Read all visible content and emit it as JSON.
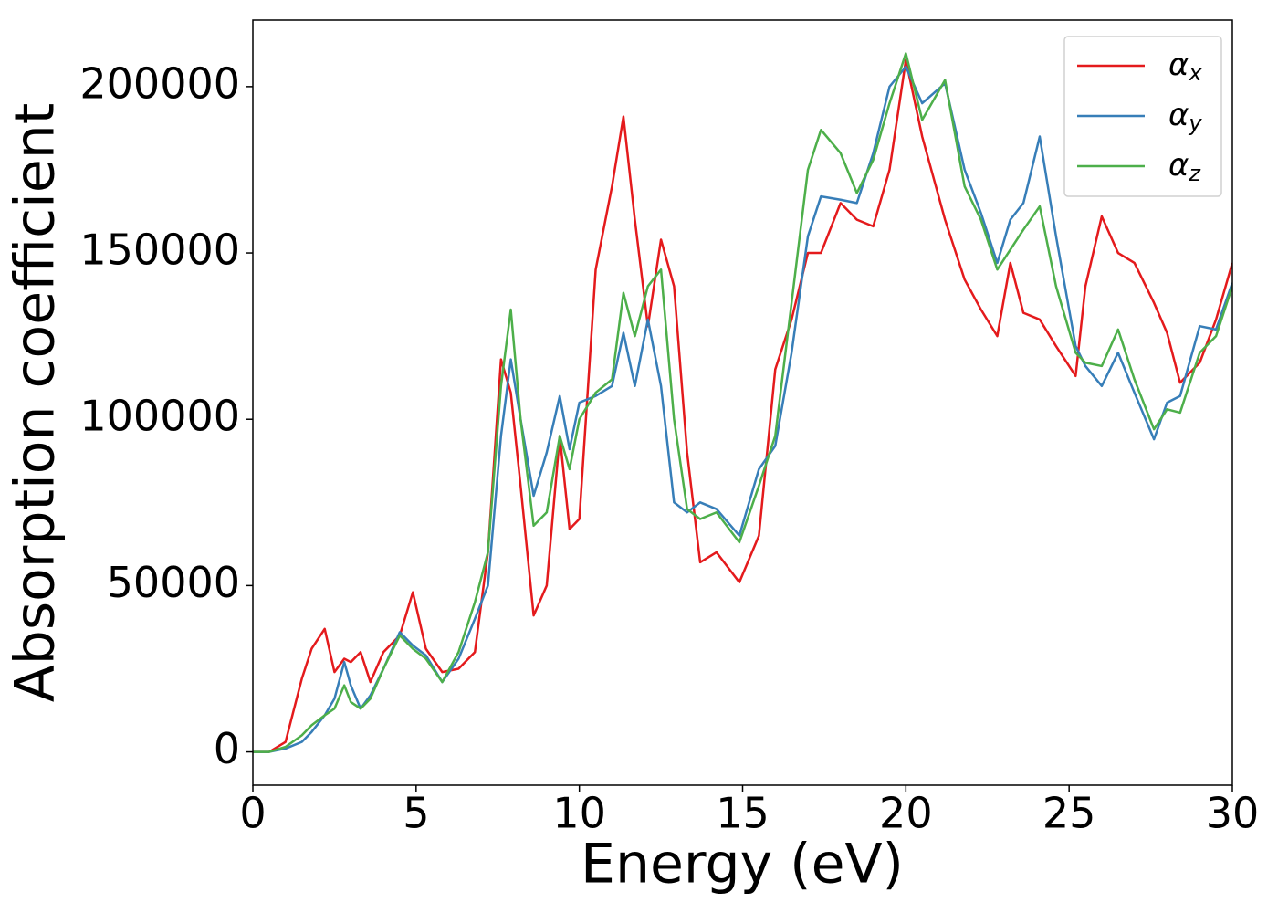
{
  "chart_data": {
    "type": "line",
    "xlabel": "Energy (eV)",
    "ylabel": "Absorption coefficient",
    "x": [
      0,
      0.5,
      1,
      1.5,
      1.8,
      2.2,
      2.5,
      2.8,
      3.0,
      3.3,
      3.6,
      4.0,
      4.5,
      4.9,
      5.3,
      5.8,
      6.3,
      6.8,
      7.2,
      7.6,
      7.9,
      8.2,
      8.6,
      9.0,
      9.4,
      9.7,
      10,
      10.5,
      11,
      11.35,
      11.7,
      12.1,
      12.5,
      12.9,
      13.3,
      13.7,
      14.2,
      14.9,
      15.5,
      16,
      16.5,
      17,
      17.4,
      18,
      18.5,
      19,
      19.5,
      20,
      20.5,
      21.2,
      21.8,
      22.3,
      22.8,
      23.2,
      23.6,
      24.1,
      24.6,
      25.2,
      25.5,
      26,
      26.5,
      27,
      27.6,
      28,
      28.4,
      29,
      29.5,
      30
    ],
    "series": [
      {
        "name": "αx",
        "color": "#e41a1c",
        "values": [
          0,
          0,
          3000,
          22000,
          31000,
          37000,
          24000,
          28000,
          27000,
          30000,
          21000,
          30000,
          35000,
          48000,
          31000,
          24000,
          25000,
          30000,
          60000,
          118000,
          108000,
          80000,
          41000,
          50000,
          95000,
          67000,
          70000,
          145000,
          170000,
          191000,
          160000,
          128000,
          154000,
          140000,
          90000,
          57000,
          60000,
          51000,
          65000,
          115000,
          130000,
          150000,
          150000,
          165000,
          160000,
          158000,
          175000,
          208000,
          185000,
          160000,
          142000,
          133000,
          125000,
          147000,
          132000,
          130000,
          122000,
          113000,
          140000,
          161000,
          150000,
          147000,
          135000,
          126000,
          111000,
          117000,
          130000,
          147000
        ]
      },
      {
        "name": "αy",
        "color": "#377eb8",
        "values": [
          0,
          0,
          1000,
          3000,
          6000,
          11000,
          16000,
          27000,
          20000,
          13000,
          17000,
          25000,
          36000,
          32000,
          29000,
          21000,
          28000,
          40000,
          50000,
          95000,
          118000,
          100000,
          77000,
          90000,
          107000,
          91000,
          105000,
          107000,
          110000,
          126000,
          110000,
          130000,
          110000,
          75000,
          72000,
          75000,
          73000,
          65000,
          85000,
          92000,
          120000,
          155000,
          167000,
          166000,
          165000,
          180000,
          200000,
          206000,
          195000,
          201000,
          175000,
          162000,
          147000,
          160000,
          165000,
          185000,
          155000,
          122000,
          116000,
          110000,
          120000,
          108000,
          94000,
          105000,
          107000,
          128000,
          127000,
          141000
        ]
      },
      {
        "name": "αz",
        "color": "#4daf4a",
        "values": [
          0,
          0,
          1500,
          5000,
          8000,
          11000,
          13000,
          20000,
          15000,
          13000,
          16000,
          25000,
          35000,
          31000,
          28000,
          21000,
          30000,
          45000,
          60000,
          110000,
          133000,
          100000,
          68000,
          72000,
          95000,
          85000,
          100000,
          108000,
          112000,
          138000,
          125000,
          140000,
          145000,
          100000,
          73000,
          70000,
          72000,
          63000,
          80000,
          95000,
          135000,
          175000,
          187000,
          180000,
          168000,
          178000,
          195000,
          210000,
          190000,
          202000,
          170000,
          160000,
          145000,
          151000,
          157000,
          164000,
          140000,
          120000,
          117000,
          116000,
          127000,
          112000,
          97000,
          103000,
          102000,
          120000,
          125000,
          140000
        ]
      }
    ],
    "xlim": [
      0,
      30
    ],
    "xticks": [
      0,
      5,
      10,
      15,
      20,
      25,
      30
    ],
    "ylim": [
      -10000,
      220000
    ],
    "yticks": [
      0,
      50000,
      100000,
      150000,
      200000
    ],
    "legend": "upper right",
    "grid": false
  }
}
